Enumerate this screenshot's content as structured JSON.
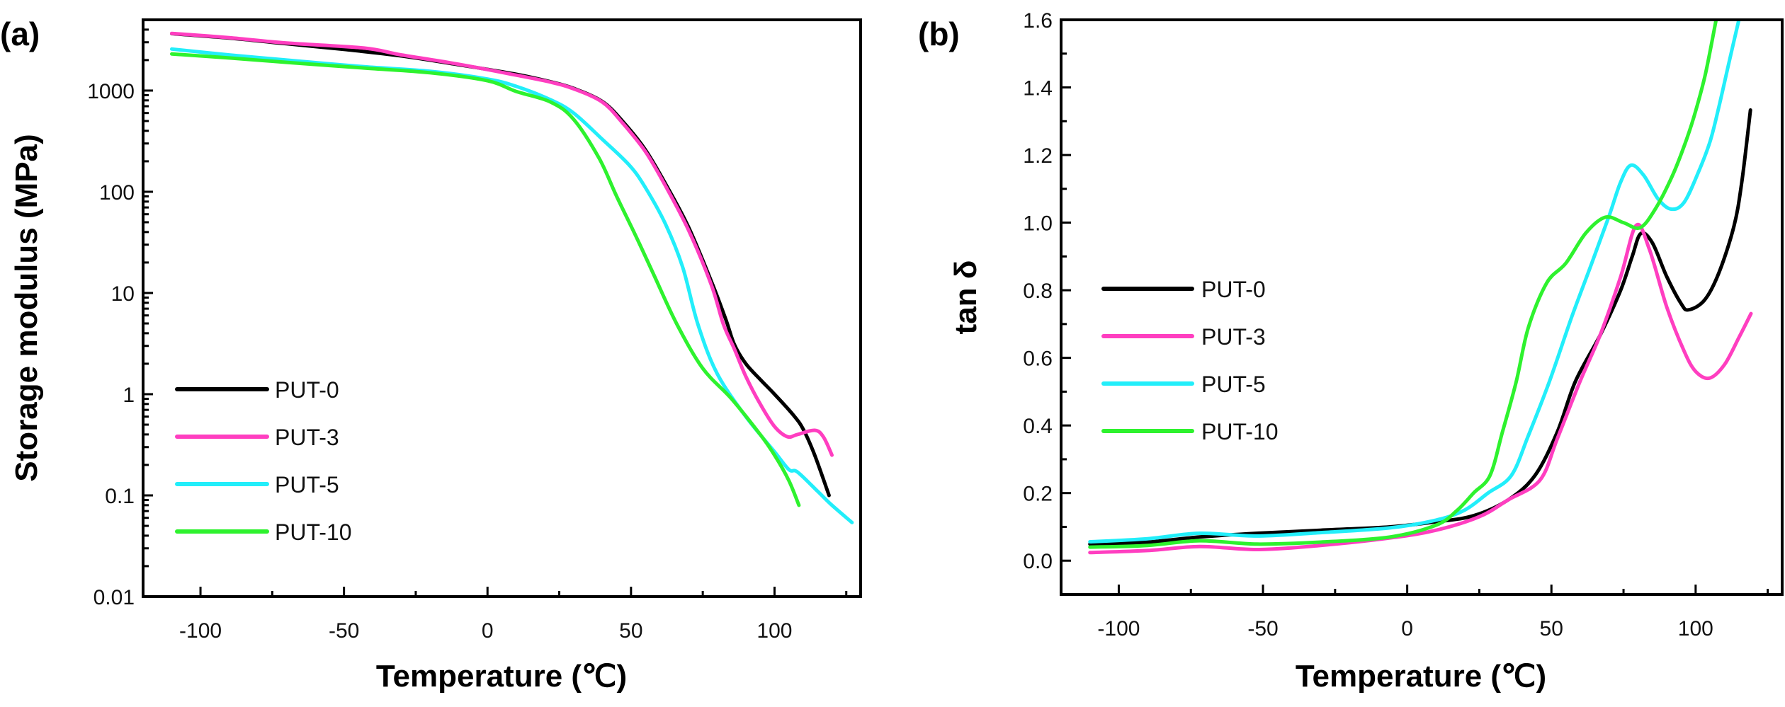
{
  "chart_data": [
    {
      "panel_label": "(a)",
      "type": "line",
      "title": "",
      "xlabel": "Temperature (℃)",
      "ylabel": "Storage modulus (MPa)",
      "xlim": [
        -120,
        130
      ],
      "ylim": [
        0.01,
        5000
      ],
      "yscale": "log",
      "x_ticks": [
        -100,
        -50,
        0,
        50,
        100
      ],
      "x_tick_labels": [
        "-100",
        "-50",
        "0",
        "50",
        "100"
      ],
      "x_minor_ticks": [
        -75,
        -25,
        25,
        75,
        125
      ],
      "y_ticks": [
        0.01,
        0.1,
        1,
        10,
        100,
        1000
      ],
      "y_tick_labels": [
        "0.01",
        "0.1",
        "1",
        "10",
        "100",
        "1000"
      ],
      "grid": false,
      "legend_position": "bottom-left",
      "series": [
        {
          "name": "PUT-0",
          "color": "#000000",
          "points": [
            [
              -110,
              3650
            ],
            [
              -90,
              3300
            ],
            [
              -70,
              2900
            ],
            [
              -50,
              2550
            ],
            [
              -30,
              2200
            ],
            [
              -10,
              1800
            ],
            [
              10,
              1450
            ],
            [
              22,
              1220
            ],
            [
              30,
              1050
            ],
            [
              40,
              780
            ],
            [
              47,
              500
            ],
            [
              55,
              260
            ],
            [
              62,
              120
            ],
            [
              70,
              45
            ],
            [
              78,
              13
            ],
            [
              83,
              5.5
            ],
            [
              86,
              3.1
            ],
            [
              90,
              2.0
            ],
            [
              95,
              1.4
            ],
            [
              100,
              1.0
            ],
            [
              106.6,
              0.62
            ],
            [
              110,
              0.45
            ],
            [
              114,
              0.25
            ],
            [
              119,
              0.1
            ]
          ]
        },
        {
          "name": "PUT-3",
          "color": "#ff3ec0",
          "points": [
            [
              -110,
              3670
            ],
            [
              -90,
              3330
            ],
            [
              -70,
              2950
            ],
            [
              -43,
              2630
            ],
            [
              -30,
              2250
            ],
            [
              -10,
              1820
            ],
            [
              10,
              1420
            ],
            [
              22,
              1210
            ],
            [
              30,
              1040
            ],
            [
              40,
              770
            ],
            [
              47,
              480
            ],
            [
              55,
              250
            ],
            [
              61.8,
              117
            ],
            [
              70,
              42
            ],
            [
              78,
              12
            ],
            [
              82.2,
              4.9
            ],
            [
              86,
              2.8
            ],
            [
              90,
              1.5
            ],
            [
              95,
              0.8
            ],
            [
              100,
              0.48
            ],
            [
              104.5,
              0.38
            ],
            [
              108,
              0.4
            ],
            [
              114,
              0.44
            ],
            [
              117,
              0.38
            ],
            [
              120,
              0.25
            ]
          ]
        },
        {
          "name": "PUT-5",
          "color": "#22eefa",
          "points": [
            [
              -110,
              2570
            ],
            [
              -90,
              2250
            ],
            [
              -70,
              2000
            ],
            [
              -43,
              1720
            ],
            [
              -20,
              1550
            ],
            [
              0,
              1300
            ],
            [
              10,
              1100
            ],
            [
              22,
              810
            ],
            [
              30,
              600
            ],
            [
              40,
              330
            ],
            [
              49.5,
              182
            ],
            [
              55,
              110
            ],
            [
              62,
              48
            ],
            [
              68,
              18
            ],
            [
              73.3,
              4.9
            ],
            [
              80,
              1.6
            ],
            [
              90,
              0.6
            ],
            [
              100,
              0.27
            ],
            [
              105,
              0.18
            ],
            [
              108,
              0.17
            ],
            [
              115,
              0.11
            ],
            [
              120,
              0.08
            ],
            [
              127,
              0.054
            ]
          ]
        },
        {
          "name": "PUT-10",
          "color": "#2ef22e",
          "points": [
            [
              -110,
              2300
            ],
            [
              -90,
              2100
            ],
            [
              -70,
              1900
            ],
            [
              -43,
              1670
            ],
            [
              -20,
              1500
            ],
            [
              0,
              1250
            ],
            [
              10,
              980
            ],
            [
              22,
              770
            ],
            [
              30,
              520
            ],
            [
              38.9,
              214
            ],
            [
              45,
              90
            ],
            [
              52,
              35
            ],
            [
              58,
              15
            ],
            [
              66,
              4.9
            ],
            [
              75,
              1.8
            ],
            [
              85,
              0.9
            ],
            [
              95,
              0.4
            ],
            [
              100,
              0.25
            ],
            [
              105,
              0.14
            ],
            [
              108.5,
              0.08
            ]
          ]
        }
      ]
    },
    {
      "panel_label": "(b)",
      "type": "line",
      "title": "",
      "xlabel": "Temperature (℃)",
      "ylabel": "tan δ",
      "xlim": [
        -120,
        130
      ],
      "ylim": [
        -0.1,
        1.6
      ],
      "yscale": "linear",
      "x_ticks": [
        -100,
        -50,
        0,
        50,
        100
      ],
      "x_tick_labels": [
        "-100",
        "-50",
        "0",
        "50",
        "100"
      ],
      "x_minor_ticks": [
        -75,
        -25,
        25,
        75,
        125
      ],
      "y_ticks": [
        0.0,
        0.2,
        0.4,
        0.6,
        0.8,
        1.0,
        1.2,
        1.4,
        1.6
      ],
      "y_tick_labels": [
        "0.0",
        "0.2",
        "0.4",
        "0.6",
        "0.8",
        "1.0",
        "1.2",
        "1.4",
        "1.6"
      ],
      "y_minor_ticks": [
        0.1,
        0.3,
        0.5,
        0.7,
        0.9,
        1.1,
        1.3,
        1.5
      ],
      "grid": false,
      "legend_position": "center-left",
      "series": [
        {
          "name": "PUT-0",
          "color": "#000000",
          "points": [
            [
              -110,
              0.049
            ],
            [
              -90,
              0.055
            ],
            [
              -72,
              0.07
            ],
            [
              -52,
              0.081
            ],
            [
              -30,
              0.09
            ],
            [
              -6,
              0.1
            ],
            [
              10,
              0.115
            ],
            [
              23,
              0.133
            ],
            [
              35,
              0.18
            ],
            [
              44.3,
              0.252
            ],
            [
              52,
              0.38
            ],
            [
              58.3,
              0.53
            ],
            [
              67,
              0.669
            ],
            [
              74,
              0.8
            ],
            [
              78,
              0.9
            ],
            [
              81,
              0.968
            ],
            [
              85,
              0.94
            ],
            [
              90,
              0.84
            ],
            [
              95,
              0.76
            ],
            [
              97.5,
              0.742
            ],
            [
              103,
              0.77
            ],
            [
              108,
              0.85
            ],
            [
              113.3,
              0.99
            ],
            [
              116,
              1.12
            ],
            [
              119,
              1.333
            ]
          ]
        },
        {
          "name": "PUT-3",
          "color": "#ff3ec0",
          "points": [
            [
              -110,
              0.024
            ],
            [
              -90,
              0.03
            ],
            [
              -72,
              0.042
            ],
            [
              -52,
              0.033
            ],
            [
              -30,
              0.045
            ],
            [
              -6,
              0.067
            ],
            [
              10,
              0.09
            ],
            [
              25,
              0.13
            ],
            [
              35,
              0.18
            ],
            [
              46,
              0.238
            ],
            [
              52,
              0.36
            ],
            [
              59.9,
              0.53
            ],
            [
              67,
              0.67
            ],
            [
              74,
              0.84
            ],
            [
              79.4,
              0.992
            ],
            [
              84,
              0.92
            ],
            [
              90,
              0.75
            ],
            [
              96,
              0.62
            ],
            [
              100,
              0.56
            ],
            [
              104.8,
              0.54
            ],
            [
              110,
              0.58
            ],
            [
              115,
              0.66
            ],
            [
              119.2,
              0.731
            ]
          ]
        },
        {
          "name": "PUT-5",
          "color": "#22eefa",
          "points": [
            [
              -110,
              0.056
            ],
            [
              -90,
              0.065
            ],
            [
              -72,
              0.081
            ],
            [
              -52,
              0.073
            ],
            [
              -30,
              0.083
            ],
            [
              -6,
              0.097
            ],
            [
              10,
              0.12
            ],
            [
              20,
              0.15
            ],
            [
              28,
              0.2
            ],
            [
              36.1,
              0.252
            ],
            [
              42,
              0.37
            ],
            [
              49.3,
              0.53
            ],
            [
              57,
              0.72
            ],
            [
              64,
              0.88
            ],
            [
              70,
              1.02
            ],
            [
              74,
              1.12
            ],
            [
              77.6,
              1.17
            ],
            [
              82,
              1.14
            ],
            [
              87,
              1.07
            ],
            [
              91.5,
              1.04
            ],
            [
              96,
              1.06
            ],
            [
              101,
              1.15
            ],
            [
              105,
              1.24
            ],
            [
              108,
              1.34
            ],
            [
              111.6,
              1.475
            ],
            [
              115,
              1.6
            ]
          ]
        },
        {
          "name": "PUT-10",
          "color": "#2ef22e",
          "points": [
            [
              -110,
              0.04
            ],
            [
              -90,
              0.045
            ],
            [
              -72,
              0.059
            ],
            [
              -52,
              0.049
            ],
            [
              -30,
              0.055
            ],
            [
              -6,
              0.07
            ],
            [
              10,
              0.105
            ],
            [
              17.2,
              0.148
            ],
            [
              23,
              0.2
            ],
            [
              28.7,
              0.252
            ],
            [
              33,
              0.38
            ],
            [
              37.8,
              0.53
            ],
            [
              42,
              0.69
            ],
            [
              48.4,
              0.822
            ],
            [
              55,
              0.88
            ],
            [
              62,
              0.97
            ],
            [
              68.7,
              1.016
            ],
            [
              75,
              1.0
            ],
            [
              80.7,
              0.985
            ],
            [
              86,
              1.04
            ],
            [
              92,
              1.14
            ],
            [
              96.8,
              1.245
            ],
            [
              100,
              1.33
            ],
            [
              103.4,
              1.44
            ],
            [
              107,
              1.595
            ]
          ]
        }
      ]
    }
  ]
}
